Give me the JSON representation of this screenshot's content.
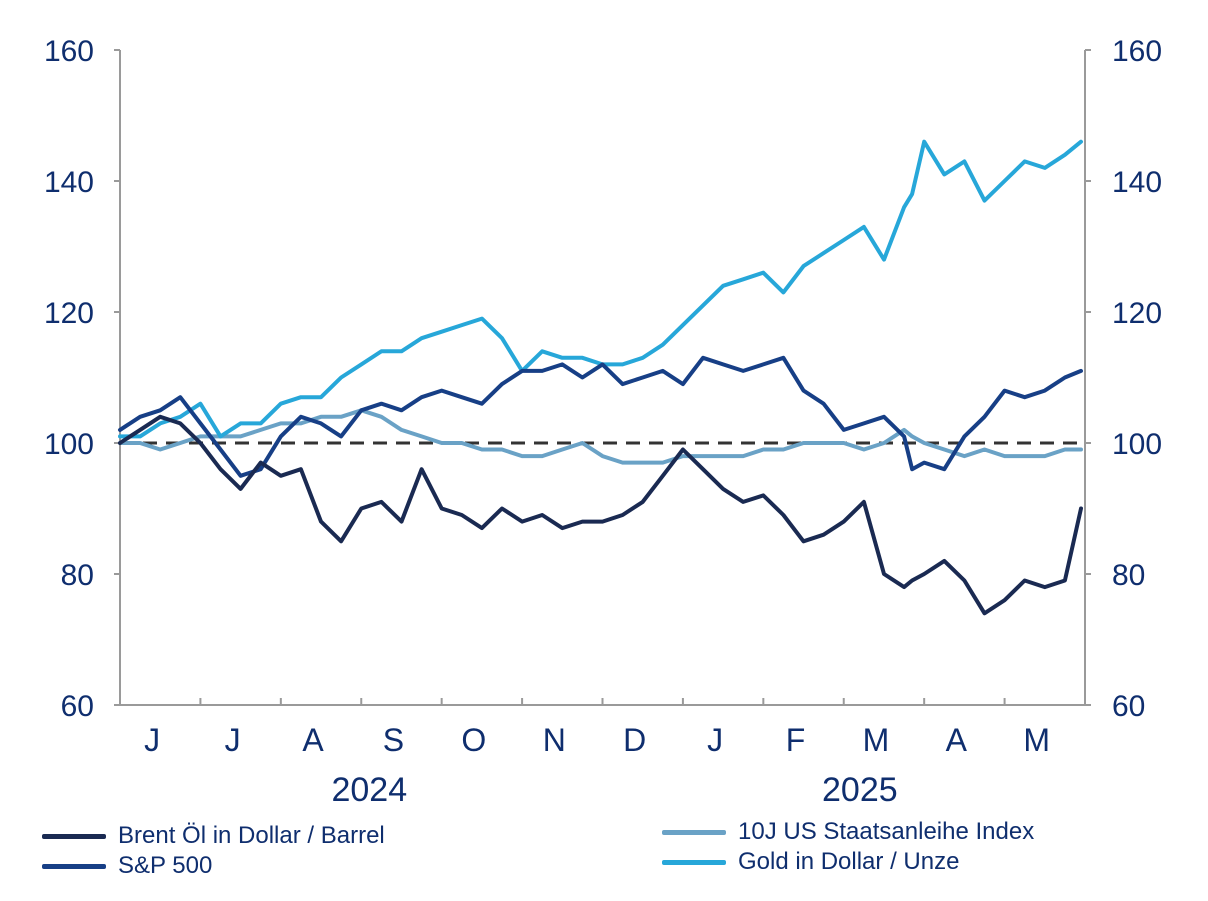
{
  "chart_data": {
    "type": "line",
    "title": "",
    "xlabel": "",
    "ylabel": "",
    "ylim": [
      60,
      160
    ],
    "yticks": [
      60,
      80,
      100,
      120,
      140,
      160
    ],
    "y_right_ticks": [
      60,
      80,
      100,
      120,
      140,
      160
    ],
    "reference_line": 100,
    "x_range": [
      0,
      12
    ],
    "month_labels": [
      "J",
      "J",
      "A",
      "S",
      "O",
      "N",
      "D",
      "J",
      "F",
      "M",
      "A",
      "M"
    ],
    "year_labels": [
      "2024",
      "2025"
    ],
    "colors": {
      "axis": "#9a9a9a",
      "text": "#0f2e6e",
      "reference": "#333333"
    },
    "series": [
      {
        "name": "Brent Öl in Dollar / Barrel",
        "color": "#1a2a52",
        "x": [
          0,
          0.25,
          0.5,
          0.75,
          1.0,
          1.25,
          1.5,
          1.75,
          2.0,
          2.25,
          2.5,
          2.75,
          3.0,
          3.25,
          3.5,
          3.75,
          4.0,
          4.25,
          4.5,
          4.75,
          5.0,
          5.25,
          5.5,
          5.75,
          6.0,
          6.25,
          6.5,
          6.75,
          7.0,
          7.25,
          7.5,
          7.75,
          8.0,
          8.25,
          8.5,
          8.75,
          9.0,
          9.25,
          9.5,
          9.75,
          9.85,
          10.0,
          10.25,
          10.5,
          10.75,
          11.0,
          11.25,
          11.5,
          11.75,
          11.95
        ],
        "values": [
          100,
          102,
          104,
          103,
          100,
          96,
          93,
          97,
          95,
          96,
          88,
          85,
          90,
          91,
          88,
          96,
          90,
          89,
          87,
          90,
          88,
          89,
          87,
          88,
          88,
          89,
          91,
          95,
          99,
          96,
          93,
          91,
          92,
          89,
          85,
          86,
          88,
          91,
          80,
          78,
          79,
          80,
          82,
          79,
          74,
          76,
          79,
          78,
          79,
          90
        ]
      },
      {
        "name": "S&P 500",
        "color": "#173f86",
        "x": [
          0,
          0.25,
          0.5,
          0.75,
          1.0,
          1.25,
          1.5,
          1.75,
          2.0,
          2.25,
          2.5,
          2.75,
          3.0,
          3.25,
          3.5,
          3.75,
          4.0,
          4.25,
          4.5,
          4.75,
          5.0,
          5.25,
          5.5,
          5.75,
          6.0,
          6.25,
          6.5,
          6.75,
          7.0,
          7.25,
          7.5,
          7.75,
          8.0,
          8.25,
          8.5,
          8.75,
          9.0,
          9.25,
          9.5,
          9.75,
          9.85,
          10.0,
          10.25,
          10.5,
          10.75,
          11.0,
          11.25,
          11.5,
          11.75,
          11.95
        ],
        "values": [
          102,
          104,
          105,
          107,
          103,
          99,
          95,
          96,
          101,
          104,
          103,
          101,
          105,
          106,
          105,
          107,
          108,
          107,
          106,
          109,
          111,
          111,
          112,
          110,
          112,
          109,
          110,
          111,
          109,
          113,
          112,
          111,
          112,
          113,
          108,
          106,
          102,
          103,
          104,
          101,
          96,
          97,
          96,
          101,
          104,
          108,
          107,
          108,
          110,
          111
        ]
      },
      {
        "name": "10J US Staatsanleihe Index",
        "color": "#6aa2c6",
        "x": [
          0,
          0.25,
          0.5,
          0.75,
          1.0,
          1.25,
          1.5,
          1.75,
          2.0,
          2.25,
          2.5,
          2.75,
          3.0,
          3.25,
          3.5,
          3.75,
          4.0,
          4.25,
          4.5,
          4.75,
          5.0,
          5.25,
          5.5,
          5.75,
          6.0,
          6.25,
          6.5,
          6.75,
          7.0,
          7.25,
          7.5,
          7.75,
          8.0,
          8.25,
          8.5,
          8.75,
          9.0,
          9.25,
          9.5,
          9.75,
          9.85,
          10.0,
          10.25,
          10.5,
          10.75,
          11.0,
          11.25,
          11.5,
          11.75,
          11.95
        ],
        "values": [
          100,
          100,
          99,
          100,
          101,
          101,
          101,
          102,
          103,
          103,
          104,
          104,
          105,
          104,
          102,
          101,
          100,
          100,
          99,
          99,
          98,
          98,
          99,
          100,
          98,
          97,
          97,
          97,
          98,
          98,
          98,
          98,
          99,
          99,
          100,
          100,
          100,
          99,
          100,
          102,
          101,
          100,
          99,
          98,
          99,
          98,
          98,
          98,
          99,
          99
        ]
      },
      {
        "name": "Gold in Dollar / Unze",
        "color": "#27a7d9",
        "x": [
          0,
          0.25,
          0.5,
          0.75,
          1.0,
          1.25,
          1.5,
          1.75,
          2.0,
          2.25,
          2.5,
          2.75,
          3.0,
          3.25,
          3.5,
          3.75,
          4.0,
          4.25,
          4.5,
          4.75,
          5.0,
          5.25,
          5.5,
          5.75,
          6.0,
          6.25,
          6.5,
          6.75,
          7.0,
          7.25,
          7.5,
          7.75,
          8.0,
          8.25,
          8.5,
          8.75,
          9.0,
          9.25,
          9.5,
          9.75,
          9.85,
          10.0,
          10.25,
          10.5,
          10.75,
          11.0,
          11.25,
          11.5,
          11.75,
          11.95
        ],
        "values": [
          101,
          101,
          103,
          104,
          106,
          101,
          103,
          103,
          106,
          107,
          107,
          110,
          112,
          114,
          114,
          116,
          117,
          118,
          119,
          116,
          111,
          114,
          113,
          113,
          112,
          112,
          113,
          115,
          118,
          121,
          124,
          125,
          126,
          123,
          127,
          129,
          131,
          133,
          128,
          136,
          138,
          146,
          141,
          143,
          137,
          140,
          143,
          142,
          144,
          146
        ]
      }
    ],
    "legend": [
      "Brent Öl in Dollar / Barrel",
      "S&P 500",
      "10J US Staatsanleihe Index",
      "Gold in Dollar / Unze"
    ],
    "legend_position": "bottom"
  }
}
